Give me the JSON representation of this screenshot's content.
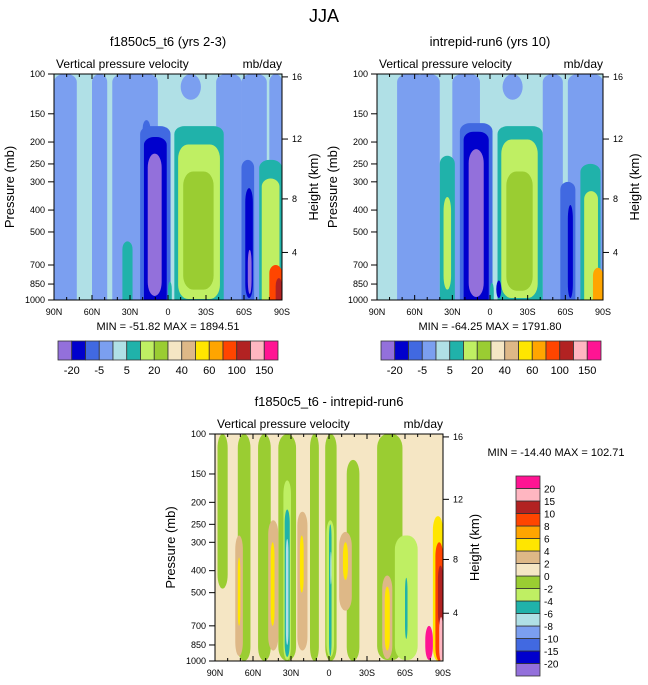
{
  "figure": {
    "title": "JJA"
  },
  "chart_data": [
    {
      "type": "heatmap",
      "id": "panel-left",
      "title": "f1850c5_t6 (yrs 2-3)",
      "left_label": "Vertical pressure velocity",
      "right_label": "mb/day",
      "ylabel": "Pressure (mb)",
      "ylabel_right": "Height (km)",
      "xlabel": "",
      "x_ticks": [
        "90N",
        "60N",
        "30N",
        "0",
        "30S",
        "60S",
        "90S"
      ],
      "x_range": [
        90,
        -90
      ],
      "y_ticks": [
        "100",
        "150",
        "200",
        "250",
        "300",
        "400",
        "500",
        "700",
        "850",
        "1000"
      ],
      "y_range": [
        100,
        1000
      ],
      "y_scale": "log",
      "y_right_ticks": [
        "16",
        "12",
        "8",
        "4"
      ],
      "stats": "MIN = -51.82  MAX = 1894.51",
      "background_level": 4,
      "features": [
        {
          "lat0": 90,
          "lat1": 72,
          "p_top": 100,
          "level": 3
        },
        {
          "lat0": 60,
          "lat1": 48,
          "p_top": 100,
          "level": 3
        },
        {
          "lat0": 44,
          "lat1": 8,
          "p_top": 100,
          "level": 3
        },
        {
          "lat0": 20,
          "lat1": 14,
          "p_top": 160,
          "level": 2
        },
        {
          "lat0": -10,
          "lat1": -26,
          "p_top": 100,
          "p_bot": 130,
          "level": 3
        },
        {
          "lat0": -38,
          "lat1": -58,
          "p_top": 100,
          "level": 3
        },
        {
          "lat0": -58,
          "lat1": -78,
          "p_top": 100,
          "level": 3
        },
        {
          "lat0": -80,
          "lat1": -90,
          "p_top": 100,
          "level": 3
        },
        {
          "lat0": 22,
          "lat1": -2,
          "p_top": 170,
          "level": 2
        },
        {
          "lat0": 19,
          "lat1": 1,
          "p_top": 190,
          "level": 1
        },
        {
          "lat0": 16,
          "lat1": 5,
          "p_top": 225,
          "p_bot": 960,
          "level": 0
        },
        {
          "lat0": -5,
          "lat1": -44,
          "p_top": 170,
          "level": 5
        },
        {
          "lat0": -8,
          "lat1": -41,
          "p_top": 205,
          "p_bot": 990,
          "level": 6
        },
        {
          "lat0": -12,
          "lat1": -36,
          "p_top": 270,
          "p_bot": 900,
          "level": 7
        },
        {
          "lat0": -58,
          "lat1": -68,
          "p_top": 240,
          "level": 2
        },
        {
          "lat0": -61,
          "lat1": -67,
          "p_top": 320,
          "p_bot": 980,
          "level": 1
        },
        {
          "lat0": -63,
          "lat1": -66,
          "p_top": 600,
          "p_bot": 940,
          "level": 0
        },
        {
          "lat0": -72,
          "lat1": -90,
          "p_top": 240,
          "level": 5
        },
        {
          "lat0": -74,
          "lat1": -88,
          "p_top": 290,
          "level": 6
        },
        {
          "lat0": -80,
          "lat1": -90,
          "p_top": 700,
          "level": 12
        },
        {
          "lat0": -85,
          "lat1": -90,
          "p_top": 800,
          "level": 13
        },
        {
          "lat0": 0,
          "lat1": -3,
          "p_top": 830,
          "level": 5
        },
        {
          "lat0": 36,
          "lat1": 28,
          "p_top": 550,
          "level": 5
        }
      ]
    },
    {
      "type": "heatmap",
      "id": "panel-right",
      "title": "intrepid-run6 (yrs 10)",
      "left_label": "Vertical pressure velocity",
      "right_label": "mb/day",
      "ylabel": "Pressure (mb)",
      "ylabel_right": "Height (km)",
      "xlabel": "",
      "x_ticks": [
        "90N",
        "60N",
        "30N",
        "0",
        "30S",
        "60S",
        "90S"
      ],
      "x_range": [
        90,
        -90
      ],
      "y_ticks": [
        "100",
        "150",
        "200",
        "250",
        "300",
        "400",
        "500",
        "700",
        "850",
        "1000"
      ],
      "y_range": [
        100,
        1000
      ],
      "y_scale": "log",
      "y_right_ticks": [
        "16",
        "12",
        "8",
        "4"
      ],
      "stats": "MIN = -64.25  MAX = 1791.80",
      "background_level": 4,
      "features": [
        {
          "lat0": 74,
          "lat1": 52,
          "p_top": 100,
          "level": 3
        },
        {
          "lat0": 60,
          "lat1": 40,
          "p_top": 100,
          "level": 3
        },
        {
          "lat0": 30,
          "lat1": 8,
          "p_top": 100,
          "level": 3
        },
        {
          "lat0": -10,
          "lat1": -26,
          "p_top": 100,
          "p_bot": 130,
          "level": 3
        },
        {
          "lat0": -42,
          "lat1": -58,
          "p_top": 100,
          "level": 3
        },
        {
          "lat0": -62,
          "lat1": -90,
          "p_top": 100,
          "level": 3
        },
        {
          "lat0": 24,
          "lat1": -2,
          "p_top": 165,
          "level": 2
        },
        {
          "lat0": 21,
          "lat1": 1,
          "p_top": 180,
          "level": 1
        },
        {
          "lat0": 17,
          "lat1": 5,
          "p_top": 215,
          "p_bot": 970,
          "level": 0
        },
        {
          "lat0": 40,
          "lat1": 28,
          "p_top": 230,
          "level": 5
        },
        {
          "lat0": 37,
          "lat1": 31,
          "p_top": 350,
          "p_bot": 900,
          "level": 6
        },
        {
          "lat0": -6,
          "lat1": -42,
          "p_top": 170,
          "level": 5
        },
        {
          "lat0": -9,
          "lat1": -38,
          "p_top": 195,
          "p_bot": 980,
          "level": 6
        },
        {
          "lat0": -13,
          "lat1": -34,
          "p_top": 270,
          "p_bot": 910,
          "level": 7
        },
        {
          "lat0": -56,
          "lat1": -68,
          "p_top": 300,
          "level": 2
        },
        {
          "lat0": -62,
          "lat1": -66,
          "p_top": 380,
          "p_bot": 980,
          "level": 1
        },
        {
          "lat0": -72,
          "lat1": -88,
          "p_top": 250,
          "level": 5
        },
        {
          "lat0": -75,
          "lat1": -86,
          "p_top": 330,
          "level": 6
        },
        {
          "lat0": -82,
          "lat1": -90,
          "p_top": 720,
          "level": 11
        },
        {
          "lat0": 0,
          "lat1": -3,
          "p_top": 840,
          "level": 5
        },
        {
          "lat0": -5,
          "lat1": -9,
          "p_top": 820,
          "p_bot": 980,
          "level": 1
        }
      ]
    },
    {
      "type": "heatmap",
      "id": "panel-diff",
      "title": "f1850c5_t6 - intrepid-run6",
      "left_label": "Vertical pressure velocity",
      "right_label": "mb/day",
      "ylabel": "Pressure (mb)",
      "ylabel_right": "Height (km)",
      "xlabel": "",
      "x_ticks": [
        "90N",
        "60N",
        "30N",
        "0",
        "30S",
        "60S",
        "90S"
      ],
      "x_range": [
        90,
        -90
      ],
      "y_ticks": [
        "100",
        "150",
        "200",
        "250",
        "300",
        "400",
        "500",
        "700",
        "850",
        "1000"
      ],
      "y_range": [
        100,
        1000
      ],
      "y_scale": "log",
      "y_right_ticks": [
        "16",
        "12",
        "8",
        "4"
      ],
      "stats": "MIN = -14.40  MAX = 102.71",
      "background_level": 8,
      "features": [
        {
          "lat0": 88,
          "lat1": 80,
          "p_top": 100,
          "p_bot": 480,
          "level": 7
        },
        {
          "lat0": 72,
          "lat1": 62,
          "p_top": 100,
          "p_bot": 1000,
          "level": 7
        },
        {
          "lat0": 56,
          "lat1": 46,
          "p_top": 100,
          "p_bot": 1000,
          "level": 7
        },
        {
          "lat0": 40,
          "lat1": 26,
          "p_top": 100,
          "p_bot": 1000,
          "level": 7
        },
        {
          "lat0": 15,
          "lat1": 8,
          "p_top": 100,
          "p_bot": 1000,
          "level": 7
        },
        {
          "lat0": 3,
          "lat1": -6,
          "p_top": 100,
          "p_bot": 1000,
          "level": 7
        },
        {
          "lat0": -14,
          "lat1": -24,
          "p_top": 130,
          "p_bot": 1000,
          "level": 7
        },
        {
          "lat0": -38,
          "lat1": -58,
          "p_top": 100,
          "p_bot": 990,
          "level": 7
        },
        {
          "lat0": -52,
          "lat1": -70,
          "p_top": 280,
          "p_bot": 990,
          "level": 6
        },
        {
          "lat0": 36,
          "lat1": 30,
          "p_top": 160,
          "p_bot": 990,
          "level": 6
        },
        {
          "lat0": 35,
          "lat1": 31,
          "p_top": 215,
          "p_bot": 960,
          "level": 5
        },
        {
          "lat0": 34,
          "lat1": 32,
          "p_top": 290,
          "p_bot": 850,
          "level": 4
        },
        {
          "lat0": 2,
          "lat1": -4,
          "p_top": 240,
          "p_bot": 960,
          "level": 6
        },
        {
          "lat0": 0,
          "lat1": -2,
          "p_top": 250,
          "p_bot": 950,
          "level": 5
        },
        {
          "lat0": -1,
          "lat1": -2,
          "p_top": 330,
          "p_bot": 460,
          "level": 4
        },
        {
          "lat0": 25,
          "lat1": 17,
          "p_top": 220,
          "p_bot": 900,
          "level": 9
        },
        {
          "lat0": 23,
          "lat1": 20,
          "p_top": 280,
          "p_bot": 500,
          "level": 10
        },
        {
          "lat0": 48,
          "lat1": 40,
          "p_top": 240,
          "p_bot": 900,
          "level": 9
        },
        {
          "lat0": 46,
          "lat1": 43,
          "p_top": 300,
          "p_bot": 700,
          "level": 10
        },
        {
          "lat0": 74,
          "lat1": 68,
          "p_top": 280,
          "p_bot": 950,
          "level": 9
        },
        {
          "lat0": 72,
          "lat1": 70,
          "p_top": 350,
          "p_bot": 700,
          "level": 10
        },
        {
          "lat0": -8,
          "lat1": -18,
          "p_top": 270,
          "p_bot": 600,
          "level": 9
        },
        {
          "lat0": -11,
          "lat1": -15,
          "p_top": 300,
          "p_bot": 440,
          "level": 10
        },
        {
          "lat0": -42,
          "lat1": -50,
          "p_top": 420,
          "p_bot": 980,
          "level": 9
        },
        {
          "lat0": -44,
          "lat1": -48,
          "p_top": 470,
          "p_bot": 900,
          "level": 10
        },
        {
          "lat0": -60,
          "lat1": -62,
          "p_top": 430,
          "p_bot": 800,
          "level": 5
        },
        {
          "lat0": -82,
          "lat1": -90,
          "p_top": 230,
          "p_bot": 1000,
          "level": 10
        },
        {
          "lat0": -84,
          "lat1": -90,
          "p_top": 300,
          "p_bot": 1000,
          "level": 12
        },
        {
          "lat0": -86,
          "lat1": -90,
          "p_top": 380,
          "p_bot": 700,
          "level": 13
        },
        {
          "lat0": -87,
          "lat1": -90,
          "p_top": 640,
          "p_bot": 1000,
          "level": 14
        },
        {
          "lat0": -76,
          "lat1": -82,
          "p_top": 700,
          "p_bot": 990,
          "level": 15
        }
      ]
    }
  ],
  "colorbars": {
    "full": {
      "orientation": "horizontal",
      "colors": [
        "#9370DB",
        "#0000CD",
        "#4169E1",
        "#7B9FF0",
        "#B0E0E6",
        "#20B2AA",
        "#BFEF63",
        "#9ACD32",
        "#F5E6C4",
        "#DEB887",
        "#FFE600",
        "#FFA500",
        "#FF4500",
        "#B22222",
        "#FFB6C1",
        "#FF1493"
      ],
      "labels": [
        "-20",
        "-5",
        "5",
        "20",
        "40",
        "60",
        "100",
        "150"
      ]
    },
    "diff": {
      "orientation": "vertical",
      "colors": [
        "#9370DB",
        "#0000CD",
        "#4169E1",
        "#7B9FF0",
        "#B0E0E6",
        "#20B2AA",
        "#BFEF63",
        "#9ACD32",
        "#F5E6C4",
        "#DEB887",
        "#FFE600",
        "#FFA500",
        "#FF4500",
        "#B22222",
        "#FFB6C1",
        "#FF1493"
      ],
      "labels": [
        "-20",
        "-15",
        "-10",
        "-8",
        "-6",
        "-4",
        "-2",
        "0",
        "2",
        "4",
        "6",
        "8",
        "10",
        "15",
        "20"
      ]
    }
  }
}
